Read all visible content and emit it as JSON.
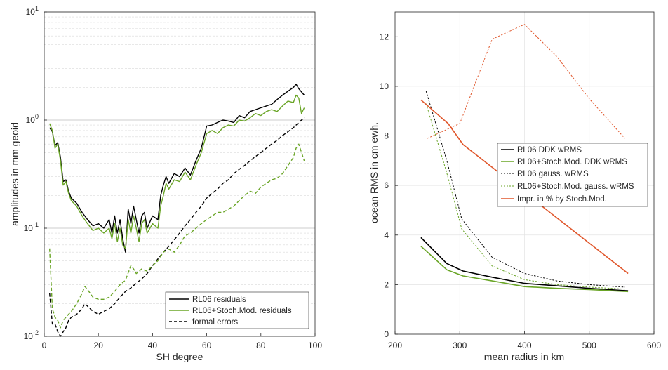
{
  "chart_data": [
    {
      "type": "line",
      "xlabel": "SH degree",
      "ylabel": "amplitudes in mm geoid",
      "xlim": [
        0,
        100
      ],
      "ylim": [
        0.01,
        10
      ],
      "yscale": "log",
      "grid": "y-major-and-minor",
      "legend_position": "bottom-right",
      "xticks": [
        0,
        20,
        40,
        60,
        80,
        100
      ],
      "xtick_labels": [
        "0",
        "20",
        "40",
        "60",
        "80",
        "100"
      ],
      "yticks": [
        0.01,
        0.1,
        1,
        10
      ],
      "ytick_labels": [
        {
          "base": "10",
          "exp": "-2"
        },
        {
          "base": "10",
          "exp": "-1"
        },
        {
          "base": "10",
          "exp": "0"
        },
        {
          "base": "10",
          "exp": "1"
        }
      ],
      "series": [
        {
          "name": "RL06 residuals",
          "color": "#000000",
          "dash": "solid",
          "x": [
            2,
            3,
            4,
            5,
            6,
            7,
            8,
            9,
            10,
            12,
            14,
            16,
            18,
            20,
            22,
            24,
            25,
            26,
            27,
            28,
            29,
            30,
            31,
            32,
            33,
            34,
            35,
            36,
            37,
            38,
            40,
            42,
            43,
            44,
            45,
            46,
            48,
            50,
            52,
            54,
            56,
            58,
            60,
            62,
            64,
            66,
            68,
            70,
            72,
            74,
            76,
            78,
            80,
            82,
            84,
            86,
            88,
            90,
            92,
            93,
            94,
            96
          ],
          "y": [
            0.85,
            0.78,
            0.58,
            0.62,
            0.45,
            0.27,
            0.28,
            0.22,
            0.19,
            0.17,
            0.14,
            0.12,
            0.105,
            0.11,
            0.1,
            0.12,
            0.09,
            0.13,
            0.09,
            0.12,
            0.08,
            0.06,
            0.15,
            0.11,
            0.16,
            0.12,
            0.09,
            0.13,
            0.14,
            0.1,
            0.13,
            0.12,
            0.2,
            0.25,
            0.3,
            0.26,
            0.32,
            0.3,
            0.36,
            0.31,
            0.42,
            0.55,
            0.88,
            0.9,
            0.95,
            1.0,
            0.98,
            0.95,
            1.1,
            1.05,
            1.2,
            1.25,
            1.3,
            1.35,
            1.4,
            1.55,
            1.7,
            1.85,
            2.0,
            2.15,
            1.95,
            1.7
          ]
        },
        {
          "name": "RL06+Stoch.Mod. residuals",
          "color": "#6aa527",
          "dash": "solid",
          "x": [
            2,
            3,
            4,
            5,
            6,
            7,
            8,
            9,
            10,
            12,
            14,
            16,
            18,
            20,
            22,
            24,
            25,
            26,
            27,
            28,
            29,
            30,
            31,
            32,
            33,
            34,
            35,
            36,
            37,
            38,
            40,
            42,
            43,
            44,
            45,
            46,
            48,
            50,
            52,
            54,
            56,
            58,
            60,
            62,
            64,
            66,
            68,
            70,
            72,
            74,
            76,
            78,
            80,
            82,
            84,
            86,
            88,
            90,
            92,
            93,
            94,
            95,
            96
          ],
          "y": [
            0.93,
            0.8,
            0.55,
            0.6,
            0.42,
            0.25,
            0.27,
            0.21,
            0.18,
            0.16,
            0.13,
            0.11,
            0.095,
            0.1,
            0.09,
            0.1,
            0.08,
            0.11,
            0.075,
            0.1,
            0.07,
            0.065,
            0.12,
            0.09,
            0.13,
            0.1,
            0.075,
            0.11,
            0.12,
            0.09,
            0.11,
            0.1,
            0.16,
            0.2,
            0.26,
            0.23,
            0.28,
            0.27,
            0.33,
            0.28,
            0.38,
            0.5,
            0.75,
            0.8,
            0.75,
            0.85,
            0.9,
            0.88,
            1.0,
            0.98,
            1.05,
            1.15,
            1.1,
            1.2,
            1.25,
            1.2,
            1.35,
            1.5,
            1.45,
            1.7,
            1.6,
            1.15,
            1.3
          ]
        },
        {
          "name": "formal errors",
          "color": "#000000",
          "dash": "dashed",
          "x": [
            2,
            3,
            4,
            5,
            6,
            7,
            8,
            9,
            10,
            12,
            14,
            15,
            16,
            18,
            20,
            22,
            24,
            26,
            28,
            30,
            32,
            34,
            36,
            38,
            40,
            42,
            44,
            46,
            48,
            50,
            52,
            54,
            56,
            58,
            60,
            62,
            64,
            66,
            68,
            70,
            72,
            74,
            76,
            78,
            80,
            82,
            84,
            86,
            88,
            90,
            92,
            94,
            96
          ],
          "y": [
            0.025,
            0.013,
            0.013,
            0.011,
            0.01,
            0.011,
            0.012,
            0.014,
            0.015,
            0.016,
            0.018,
            0.02,
            0.019,
            0.017,
            0.016,
            0.017,
            0.018,
            0.02,
            0.023,
            0.026,
            0.028,
            0.031,
            0.034,
            0.038,
            0.045,
            0.052,
            0.06,
            0.068,
            0.078,
            0.09,
            0.105,
            0.12,
            0.14,
            0.16,
            0.19,
            0.21,
            0.23,
            0.26,
            0.28,
            0.32,
            0.35,
            0.38,
            0.42,
            0.46,
            0.5,
            0.55,
            0.6,
            0.65,
            0.72,
            0.78,
            0.85,
            0.95,
            1.05
          ]
        },
        {
          "name": "",
          "color": "#6aa527",
          "dash": "dashed",
          "x": [
            2,
            3,
            4,
            5,
            6,
            7,
            8,
            9,
            10,
            12,
            14,
            15,
            16,
            18,
            20,
            22,
            24,
            26,
            28,
            30,
            32,
            33,
            34,
            36,
            38,
            40,
            42,
            44,
            46,
            48,
            50,
            52,
            54,
            56,
            58,
            60,
            62,
            64,
            66,
            68,
            70,
            72,
            74,
            76,
            78,
            80,
            82,
            84,
            86,
            88,
            90,
            92,
            93,
            94,
            96
          ],
          "y": [
            0.065,
            0.018,
            0.015,
            0.014,
            0.012,
            0.014,
            0.015,
            0.016,
            0.017,
            0.02,
            0.025,
            0.029,
            0.027,
            0.023,
            0.022,
            0.022,
            0.023,
            0.026,
            0.03,
            0.033,
            0.045,
            0.042,
            0.038,
            0.042,
            0.04,
            0.045,
            0.05,
            0.06,
            0.064,
            0.06,
            0.07,
            0.085,
            0.09,
            0.1,
            0.11,
            0.12,
            0.13,
            0.14,
            0.14,
            0.15,
            0.16,
            0.18,
            0.2,
            0.22,
            0.21,
            0.24,
            0.26,
            0.28,
            0.29,
            0.32,
            0.38,
            0.45,
            0.55,
            0.6,
            0.42
          ]
        }
      ]
    },
    {
      "type": "line",
      "xlabel": "mean radius in km",
      "ylabel": "ocean RMS in cm ewh.",
      "xlim": [
        200,
        600
      ],
      "ylim": [
        0,
        13
      ],
      "grid": "major",
      "legend_position": "center-right",
      "xticks": [
        200,
        300,
        400,
        500,
        600
      ],
      "xtick_labels": [
        "200",
        "300",
        "400",
        "500",
        "600"
      ],
      "yticks": [
        0,
        2,
        4,
        6,
        8,
        10,
        12
      ],
      "ytick_labels": [
        "0",
        "2",
        "4",
        "6",
        "8",
        "10",
        "12"
      ],
      "series": [
        {
          "name": "RL06 DDK wRMS",
          "color": "#000000",
          "dash": "solid",
          "x": [
            240,
            280,
            305,
            350,
            400,
            450,
            500,
            560
          ],
          "y": [
            3.9,
            2.85,
            2.55,
            2.3,
            2.05,
            1.95,
            1.85,
            1.75
          ]
        },
        {
          "name": "RL06+Stoch.Mod. DDK wRMS",
          "color": "#6aa527",
          "dash": "solid",
          "x": [
            240,
            280,
            305,
            350,
            400,
            450,
            500,
            560
          ],
          "y": [
            3.55,
            2.6,
            2.35,
            2.15,
            1.92,
            1.85,
            1.8,
            1.72
          ]
        },
        {
          "name": "RL06 gauss. wRMS",
          "color": "#000000",
          "dash": "dashed",
          "x": [
            248,
            280,
            303,
            350,
            400,
            450,
            500,
            555
          ],
          "y": [
            9.8,
            7.0,
            4.65,
            3.1,
            2.45,
            2.15,
            2.0,
            1.9
          ]
        },
        {
          "name": "RL06+Stoch.Mod. gauss. wRMS",
          "color": "#6aa527",
          "dash": "dashed",
          "x": [
            248,
            280,
            303,
            350,
            400,
            450,
            500,
            555
          ],
          "y": [
            9.3,
            6.5,
            4.25,
            2.75,
            2.2,
            2.0,
            1.9,
            1.82
          ]
        },
        {
          "name": "Impr. in % by Stoch.Mod.",
          "color": "#e0562b",
          "dash": "solid",
          "x": [
            240,
            282,
            305,
            560
          ],
          "y": [
            9.45,
            8.5,
            7.65,
            2.45
          ]
        },
        {
          "name": "",
          "color": "#e0562b",
          "dash": "dashed",
          "x": [
            250,
            300,
            350,
            400,
            450,
            500,
            555
          ],
          "y": [
            7.9,
            8.5,
            11.9,
            12.5,
            11.2,
            9.5,
            7.9
          ]
        }
      ]
    }
  ]
}
